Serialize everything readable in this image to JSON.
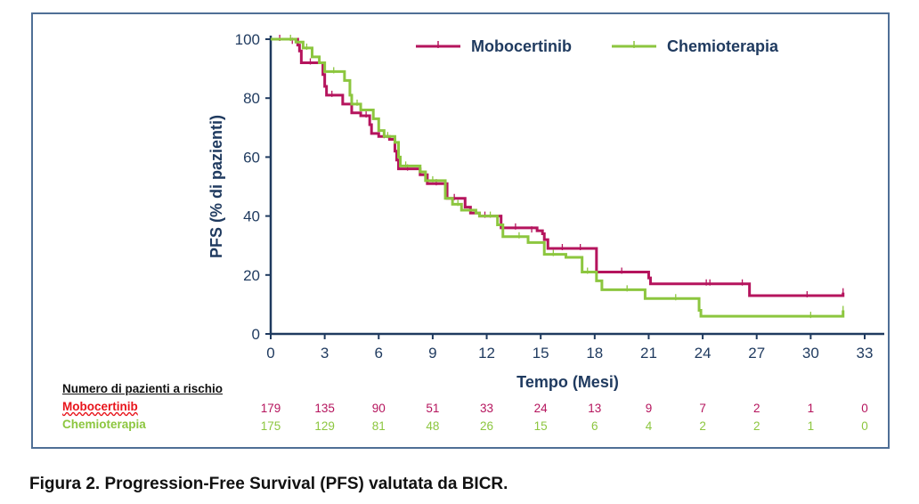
{
  "figure": {
    "caption": "Figura 2. Progression-Free Survival (PFS) valutata da BICR."
  },
  "colors": {
    "mobocertinib": "#b5145d",
    "chemioterapia": "#8cc63f",
    "axis": "#1f3a5f",
    "frame": "#4f6f96"
  },
  "risk_table": {
    "header": "Numero di pazienti a rischio",
    "rows": [
      {
        "label": "Mobocertinib",
        "color": "#e8141b",
        "counts": [
          "179",
          "135",
          "90",
          "51",
          "33",
          "24",
          "13",
          "9",
          "7",
          "2",
          "1",
          "0"
        ]
      },
      {
        "label": "Chemioterapia",
        "color": "#8cc63f",
        "counts": [
          "175",
          "129",
          "81",
          "48",
          "26",
          "15",
          "6",
          "4",
          "2",
          "2",
          "1",
          "0"
        ]
      }
    ]
  },
  "chart_data": {
    "type": "line",
    "title": "",
    "xlabel": "Tempo (Mesi)",
    "ylabel": "PFS (% di pazienti)",
    "xlim": [
      0,
      33
    ],
    "ylim": [
      0,
      100
    ],
    "xticks": [
      0,
      3,
      6,
      9,
      12,
      15,
      18,
      21,
      24,
      27,
      30,
      33
    ],
    "yticks": [
      0,
      20,
      40,
      60,
      80,
      100
    ],
    "step": true,
    "legend_position": "top",
    "series": [
      {
        "name": "Mobocertinib",
        "color": "#b5145d",
        "points": [
          [
            0,
            100
          ],
          [
            1.0,
            100
          ],
          [
            1.5,
            98
          ],
          [
            1.6,
            96
          ],
          [
            1.7,
            92
          ],
          [
            2.8,
            92
          ],
          [
            2.9,
            88
          ],
          [
            3.0,
            84
          ],
          [
            3.1,
            81
          ],
          [
            3.9,
            81
          ],
          [
            4.0,
            78
          ],
          [
            4.5,
            75
          ],
          [
            5.0,
            74
          ],
          [
            5.5,
            71
          ],
          [
            5.6,
            68
          ],
          [
            6.0,
            67
          ],
          [
            6.6,
            66
          ],
          [
            6.9,
            62
          ],
          [
            7.0,
            59
          ],
          [
            7.1,
            56
          ],
          [
            8.1,
            56
          ],
          [
            8.3,
            54
          ],
          [
            8.7,
            51
          ],
          [
            9.5,
            51
          ],
          [
            9.8,
            46
          ],
          [
            10.6,
            46
          ],
          [
            10.8,
            43
          ],
          [
            11.1,
            41
          ],
          [
            11.6,
            40
          ],
          [
            12.6,
            40
          ],
          [
            12.8,
            36
          ],
          [
            14.8,
            35
          ],
          [
            15.1,
            34
          ],
          [
            15.2,
            32
          ],
          [
            15.4,
            29
          ],
          [
            17.9,
            29
          ],
          [
            18.1,
            21
          ],
          [
            20.8,
            21
          ],
          [
            21.0,
            19
          ],
          [
            21.1,
            17
          ],
          [
            26.4,
            17
          ],
          [
            26.6,
            13
          ],
          [
            31.8,
            13
          ],
          [
            31.8,
            14
          ]
        ],
        "censor_marks": [
          [
            0.5,
            100
          ],
          [
            1.2,
            99
          ],
          [
            2.2,
            92
          ],
          [
            3.4,
            81
          ],
          [
            5.3,
            74
          ],
          [
            6.3,
            67
          ],
          [
            7.6,
            56
          ],
          [
            9.2,
            51
          ],
          [
            10.2,
            46
          ],
          [
            11.9,
            40
          ],
          [
            13.6,
            36
          ],
          [
            14.5,
            35
          ],
          [
            16.2,
            29
          ],
          [
            17.2,
            29
          ],
          [
            19.5,
            21
          ],
          [
            24.2,
            17
          ],
          [
            24.4,
            17
          ],
          [
            26.2,
            17
          ],
          [
            29.8,
            13
          ],
          [
            31.8,
            14
          ]
        ]
      },
      {
        "name": "Chemioterapia",
        "color": "#8cc63f",
        "points": [
          [
            0,
            100
          ],
          [
            1.3,
            100
          ],
          [
            1.4,
            99
          ],
          [
            1.8,
            97
          ],
          [
            2.3,
            94
          ],
          [
            2.7,
            92
          ],
          [
            3.0,
            89
          ],
          [
            4.0,
            89
          ],
          [
            4.1,
            86
          ],
          [
            4.4,
            81
          ],
          [
            4.5,
            78
          ],
          [
            5.0,
            76
          ],
          [
            5.5,
            76
          ],
          [
            5.7,
            73
          ],
          [
            6.0,
            69
          ],
          [
            6.3,
            67
          ],
          [
            6.8,
            67
          ],
          [
            6.9,
            65
          ],
          [
            7.1,
            60
          ],
          [
            7.2,
            57
          ],
          [
            8.0,
            57
          ],
          [
            8.3,
            55
          ],
          [
            8.6,
            52
          ],
          [
            9.4,
            52
          ],
          [
            9.7,
            46
          ],
          [
            10.1,
            44
          ],
          [
            10.6,
            42
          ],
          [
            11.4,
            41
          ],
          [
            11.6,
            40
          ],
          [
            12.6,
            37
          ],
          [
            12.9,
            33
          ],
          [
            14.3,
            31
          ],
          [
            15.0,
            31
          ],
          [
            15.2,
            27
          ],
          [
            16.4,
            26
          ],
          [
            17.3,
            21
          ],
          [
            18.1,
            18
          ],
          [
            18.4,
            15
          ],
          [
            20.7,
            15
          ],
          [
            20.8,
            12
          ],
          [
            23.6,
            12
          ],
          [
            23.8,
            8
          ],
          [
            23.9,
            6
          ],
          [
            31.8,
            6
          ],
          [
            31.8,
            8
          ]
        ],
        "censor_marks": [
          [
            1.1,
            100
          ],
          [
            2.0,
            97
          ],
          [
            3.5,
            89
          ],
          [
            4.8,
            78
          ],
          [
            6.5,
            67
          ],
          [
            7.5,
            57
          ],
          [
            9.0,
            52
          ],
          [
            10.4,
            44
          ],
          [
            12.2,
            40
          ],
          [
            13.8,
            33
          ],
          [
            15.7,
            27
          ],
          [
            17.6,
            21
          ],
          [
            19.8,
            15
          ],
          [
            22.5,
            12
          ],
          [
            30.0,
            6
          ],
          [
            31.8,
            8
          ]
        ]
      }
    ]
  }
}
